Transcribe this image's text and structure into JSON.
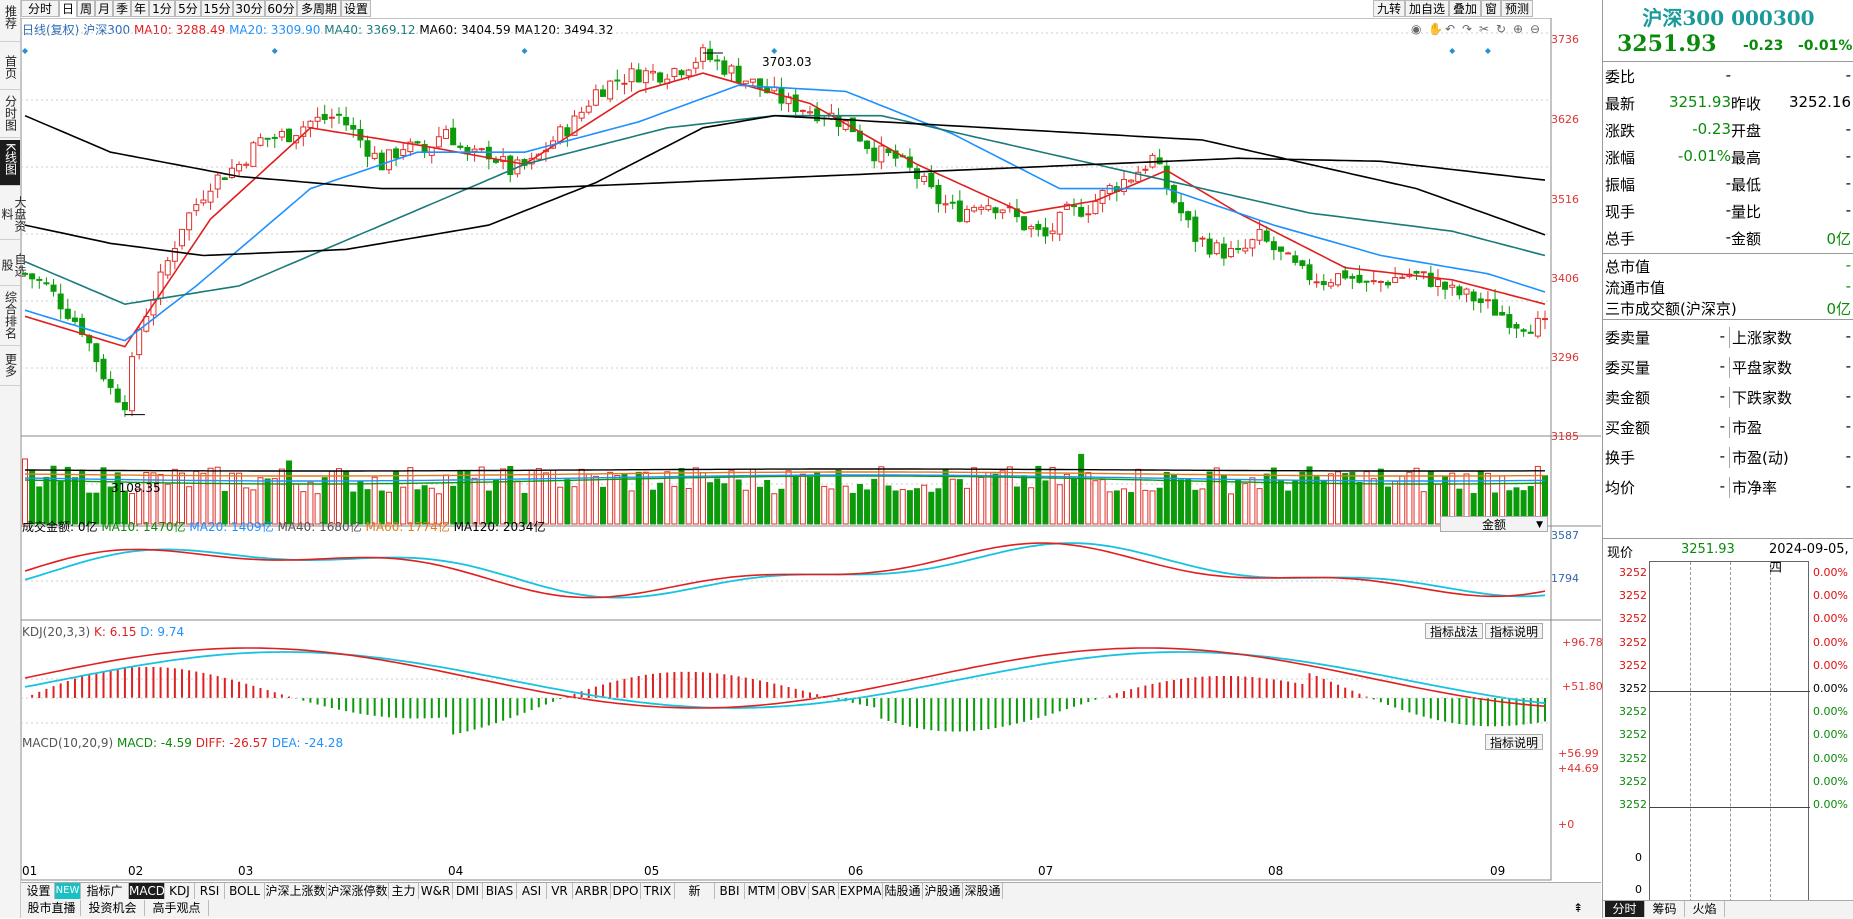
{
  "left_nav": [
    "推荐",
    "首页",
    "分时图",
    "K线图",
    "大盘资料",
    "自选股",
    "综合排名",
    "更多"
  ],
  "left_nav_active": 3,
  "toolbar": {
    "periods": [
      "分时",
      "日",
      "周",
      "月",
      "季",
      "年",
      "1分",
      "5分",
      "15分",
      "30分",
      "60分",
      "多周期",
      "设置"
    ],
    "active_period": 1,
    "right_buttons": [
      "九转",
      "加自选",
      "叠加",
      "窗",
      "预测"
    ]
  },
  "main_legend": {
    "name": "日线(复权)",
    "code": "沪深300",
    "ma10": "MA10: 3288.49",
    "ma20": "MA20: 3309.90",
    "ma40": "MA40: 3369.12",
    "ma60": "MA60: 3404.59",
    "ma120": "MA120: 3494.32"
  },
  "price_axis": [
    "3736",
    "3626",
    "3516",
    "3406",
    "3296",
    "3185"
  ],
  "annotations": {
    "high": "3703.03",
    "low": "3108.35"
  },
  "volume_legend": {
    "label": "成交金额: 0亿",
    "ma10": "MA10: 1470亿",
    "ma20": "MA20: 1409亿",
    "ma40": "MA40: 1680亿",
    "ma60": "MA60: 1774亿",
    "ma120": "MA120: 2034亿",
    "selector": "金额",
    "axis_top": "3587",
    "axis_mid": "1794"
  },
  "kdj_legend": {
    "label": "KDJ(20,3,3)",
    "k": "K: 6.15",
    "d": "D: 9.74",
    "axis_top": "+96.78",
    "axis_mid": "+51.80",
    "btn_strategy": "指标战法",
    "btn_help": "指标说明"
  },
  "macd_legend": {
    "label": "MACD(10,20,9)",
    "macd": "MACD: -4.59",
    "diff": "DIFF: -26.57",
    "dea": "DEA: -24.28",
    "axis_1": "+56.99",
    "axis_2": "+44.69",
    "axis_0": "+0",
    "btn_help": "指标说明"
  },
  "month_labels": [
    "01",
    "02",
    "03",
    "04",
    "05",
    "06",
    "07",
    "08",
    "09"
  ],
  "indicator_tabs": [
    "设置",
    "NEW",
    "指标广场",
    "MACD",
    "KDJ",
    "RSI",
    "BOLL",
    "沪深上涨数",
    "沪深涨停数",
    "主力",
    "W&R",
    "DMI",
    "BIAS",
    "ASI",
    "VR",
    "ARBR",
    "DPO",
    "TRIX",
    "新DMA",
    "BBI",
    "MTM",
    "OBV",
    "SAR",
    "EXPMA",
    "陆股通",
    "沪股通",
    "深股通"
  ],
  "active_indicator": 3,
  "bottom_tabs": [
    "股市直播",
    "投资机会",
    "高手观点"
  ],
  "right_panel": {
    "title": "沪深300 000300",
    "price": "3251.93",
    "change": "-0.23",
    "change_pct": "-0.01%",
    "rows": [
      {
        "l": "委比",
        "v1": "-",
        "l2": "",
        "v2": "-"
      },
      {
        "l": "最新",
        "v1": "3251.93",
        "l2": "昨收",
        "v2": "3252.16"
      },
      {
        "l": "涨跌",
        "v1": "-0.23",
        "l2": "开盘",
        "v2": "-"
      },
      {
        "l": "涨幅",
        "v1": "-0.01%",
        "l2": "最高",
        "v2": "-"
      },
      {
        "l": "振幅",
        "v1": "-",
        "l2": "最低",
        "v2": "-"
      },
      {
        "l": "现手",
        "v1": "-",
        "l2": "量比",
        "v2": "-"
      },
      {
        "l": "总手",
        "v1": "-",
        "l2": "金额",
        "v2": "0亿"
      }
    ],
    "rows2": [
      {
        "l": "总市值",
        "v": "-"
      },
      {
        "l": "流通市值",
        "v": "-"
      },
      {
        "l": "三市成交额(沪深京)",
        "v": "0亿"
      }
    ],
    "rows3": [
      {
        "l": "委卖量",
        "v1": "-",
        "l2": "上涨家数",
        "v2": "-"
      },
      {
        "l": "委买量",
        "v1": "-",
        "l2": "平盘家数",
        "v2": "-"
      },
      {
        "l": "卖金额",
        "v1": "-",
        "l2": "下跌家数",
        "v2": "-"
      },
      {
        "l": "买金额",
        "v1": "-",
        "l2": "市盈",
        "v2": "-"
      },
      {
        "l": "换手",
        "v1": "-",
        "l2": "市盈(动)",
        "v2": "-"
      },
      {
        "l": "均价",
        "v1": "-",
        "l2": "市净率",
        "v2": "-"
      }
    ],
    "mini": {
      "label": "现价",
      "price": "3251.93",
      "date": "2024-09-05,四",
      "left_axis": [
        "3252",
        "3252",
        "3252",
        "3252",
        "3252",
        "3252",
        "3252",
        "3252",
        "3252",
        "3252",
        "3252"
      ],
      "right_axis": [
        "0.00%",
        "0.00%",
        "0.00%",
        "0.00%",
        "0.00%",
        "0.00%",
        "0.00%",
        "0.00%",
        "0.00%",
        "0.00%",
        "0.00%"
      ],
      "vol_axis": [
        "0",
        "0"
      ]
    },
    "bottom_tabs": [
      "分时",
      "筹码",
      "火焰"
    ]
  },
  "chart_data": {
    "type": "candlestick",
    "title": "沪深300",
    "ylim": [
      3108.35,
      3736
    ],
    "high": 3703.03,
    "low": 3108.35,
    "months": [
      "01",
      "02",
      "03",
      "04",
      "05",
      "06",
      "07",
      "08",
      "09"
    ],
    "last_close": 3251.93,
    "price_path": [
      [
        0,
        3340
      ],
      [
        3,
        3320
      ],
      [
        8,
        3250
      ],
      [
        12,
        3150
      ],
      [
        14,
        3130
      ],
      [
        16,
        3250
      ],
      [
        19,
        3330
      ],
      [
        22,
        3420
      ],
      [
        26,
        3490
      ],
      [
        30,
        3520
      ],
      [
        33,
        3560
      ],
      [
        37,
        3570
      ],
      [
        40,
        3590
      ],
      [
        44,
        3600
      ],
      [
        47,
        3560
      ],
      [
        50,
        3520
      ],
      [
        53,
        3550
      ],
      [
        56,
        3540
      ],
      [
        59,
        3580
      ],
      [
        62,
        3530
      ],
      [
        65,
        3540
      ],
      [
        68,
        3510
      ],
      [
        71,
        3520
      ],
      [
        74,
        3560
      ],
      [
        77,
        3590
      ],
      [
        80,
        3640
      ],
      [
        83,
        3660
      ],
      [
        86,
        3670
      ],
      [
        89,
        3670
      ],
      [
        92,
        3680
      ],
      [
        95,
        3700
      ],
      [
        98,
        3680
      ],
      [
        101,
        3660
      ],
      [
        104,
        3640
      ],
      [
        107,
        3620
      ],
      [
        110,
        3610
      ],
      [
        113,
        3600
      ],
      [
        116,
        3580
      ],
      [
        119,
        3540
      ],
      [
        122,
        3530
      ],
      [
        125,
        3500
      ],
      [
        128,
        3460
      ],
      [
        131,
        3440
      ],
      [
        134,
        3460
      ],
      [
        137,
        3450
      ],
      [
        140,
        3420
      ],
      [
        143,
        3400
      ],
      [
        146,
        3440
      ],
      [
        149,
        3450
      ],
      [
        152,
        3480
      ],
      [
        155,
        3500
      ],
      [
        158,
        3530
      ],
      [
        161,
        3460
      ],
      [
        164,
        3400
      ],
      [
        167,
        3380
      ],
      [
        170,
        3370
      ],
      [
        173,
        3400
      ],
      [
        176,
        3370
      ],
      [
        179,
        3340
      ],
      [
        182,
        3330
      ],
      [
        185,
        3340
      ],
      [
        188,
        3320
      ],
      [
        191,
        3330
      ],
      [
        194,
        3340
      ],
      [
        197,
        3330
      ],
      [
        200,
        3310
      ],
      [
        203,
        3300
      ],
      [
        206,
        3280
      ],
      [
        209,
        3260
      ],
      [
        212,
        3255
      ],
      [
        213,
        3251.93
      ]
    ],
    "ma10_path": [
      [
        0,
        3270
      ],
      [
        14,
        3220
      ],
      [
        26,
        3430
      ],
      [
        40,
        3580
      ],
      [
        56,
        3550
      ],
      [
        70,
        3520
      ],
      [
        86,
        3640
      ],
      [
        95,
        3670
      ],
      [
        110,
        3620
      ],
      [
        125,
        3520
      ],
      [
        140,
        3440
      ],
      [
        150,
        3460
      ],
      [
        160,
        3510
      ],
      [
        170,
        3440
      ],
      [
        185,
        3350
      ],
      [
        200,
        3330
      ],
      [
        213,
        3290
      ]
    ],
    "ma20_path": [
      [
        0,
        3280
      ],
      [
        14,
        3230
      ],
      [
        24,
        3320
      ],
      [
        40,
        3480
      ],
      [
        55,
        3540
      ],
      [
        70,
        3540
      ],
      [
        86,
        3590
      ],
      [
        100,
        3650
      ],
      [
        115,
        3640
      ],
      [
        130,
        3570
      ],
      [
        145,
        3480
      ],
      [
        160,
        3480
      ],
      [
        175,
        3420
      ],
      [
        190,
        3370
      ],
      [
        205,
        3340
      ],
      [
        213,
        3310
      ]
    ],
    "ma40_path": [
      [
        0,
        3360
      ],
      [
        14,
        3290
      ],
      [
        30,
        3320
      ],
      [
        50,
        3420
      ],
      [
        70,
        3520
      ],
      [
        90,
        3580
      ],
      [
        105,
        3600
      ],
      [
        120,
        3600
      ],
      [
        135,
        3560
      ],
      [
        150,
        3520
      ],
      [
        165,
        3480
      ],
      [
        180,
        3440
      ],
      [
        200,
        3410
      ],
      [
        213,
        3370
      ]
    ],
    "ma120_path": [
      [
        0,
        3600
      ],
      [
        12,
        3540
      ],
      [
        30,
        3500
      ],
      [
        50,
        3480
      ],
      [
        70,
        3480
      ],
      [
        90,
        3490
      ],
      [
        110,
        3500
      ],
      [
        130,
        3510
      ],
      [
        150,
        3520
      ],
      [
        170,
        3530
      ],
      [
        190,
        3525
      ],
      [
        213,
        3494
      ]
    ],
    "ma120b_path": [
      [
        0,
        3420
      ],
      [
        12,
        3390
      ],
      [
        25,
        3370
      ],
      [
        45,
        3380
      ],
      [
        65,
        3420
      ],
      [
        80,
        3490
      ],
      [
        95,
        3580
      ],
      [
        105,
        3600
      ],
      [
        120,
        3590
      ],
      [
        135,
        3580
      ],
      [
        150,
        3570
      ],
      [
        165,
        3560
      ],
      [
        180,
        3520
      ],
      [
        195,
        3480
      ],
      [
        213,
        3404
      ]
    ]
  }
}
